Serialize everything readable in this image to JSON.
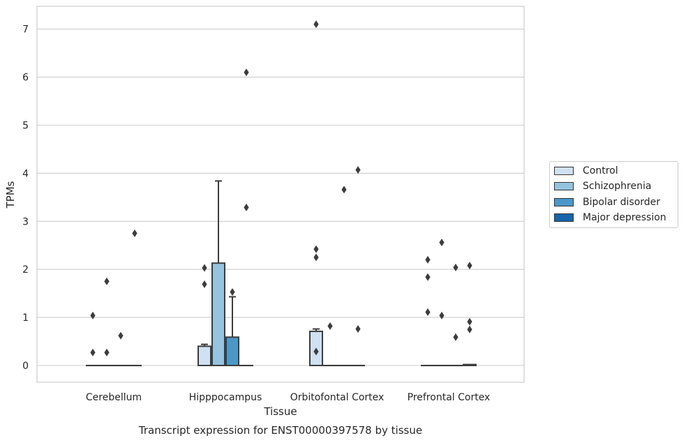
{
  "chart_data": {
    "type": "bar",
    "title": "Transcript expression for ENST00000397578 by tissue",
    "xlabel": "Tissue",
    "ylabel": "TPMs",
    "ylim": [
      -0.35,
      7.5
    ],
    "yticks": [
      "0",
      "1",
      "2",
      "3",
      "4",
      "5",
      "6",
      "7"
    ],
    "categories": [
      "Cerebellum",
      "Hipppocampus",
      "Orbitofontal Cortex",
      "Prefrontal Cortex"
    ],
    "grid": true,
    "legend_position": "right",
    "series": [
      {
        "name": "Control",
        "color": "#d0e1f2",
        "values": [
          0.0,
          0.4,
          0.71,
          0.0
        ],
        "whisker_high": [
          0.0,
          0.44,
          0.76,
          0.0
        ],
        "outliers": [
          [
            1.04,
            0.27
          ],
          [
            2.03,
            1.69
          ],
          [
            7.1,
            2.42,
            2.25,
            0.29
          ],
          [
            2.2,
            1.84,
            1.11
          ]
        ]
      },
      {
        "name": "Schizophrenia",
        "color": "#94c4df",
        "values": [
          0.0,
          2.13,
          0.0,
          0.0
        ],
        "whisker_high": [
          0.0,
          3.84,
          0.0,
          0.0
        ],
        "outliers": [
          [
            1.75,
            0.27
          ],
          [],
          [
            0.82
          ],
          [
            2.56,
            1.04
          ]
        ]
      },
      {
        "name": "Bipolar disorder",
        "color": "#4a98c9",
        "values": [
          0.0,
          0.59,
          0.0,
          0.0
        ],
        "whisker_high": [
          0.0,
          1.43,
          0.0,
          0.0
        ],
        "outliers": [
          [
            0.62
          ],
          [
            1.53
          ],
          [
            3.66
          ],
          [
            2.04,
            0.59
          ]
        ]
      },
      {
        "name": "Major depression",
        "color": "#1764ab",
        "values": [
          0.0,
          0.0,
          0.0,
          0.02
        ],
        "whisker_high": [
          0.0,
          0.0,
          0.0,
          0.02
        ],
        "outliers": [
          [
            2.75
          ],
          [
            6.1,
            3.29
          ],
          [
            4.07,
            0.76
          ],
          [
            2.08,
            0.91,
            0.75
          ]
        ]
      }
    ]
  }
}
